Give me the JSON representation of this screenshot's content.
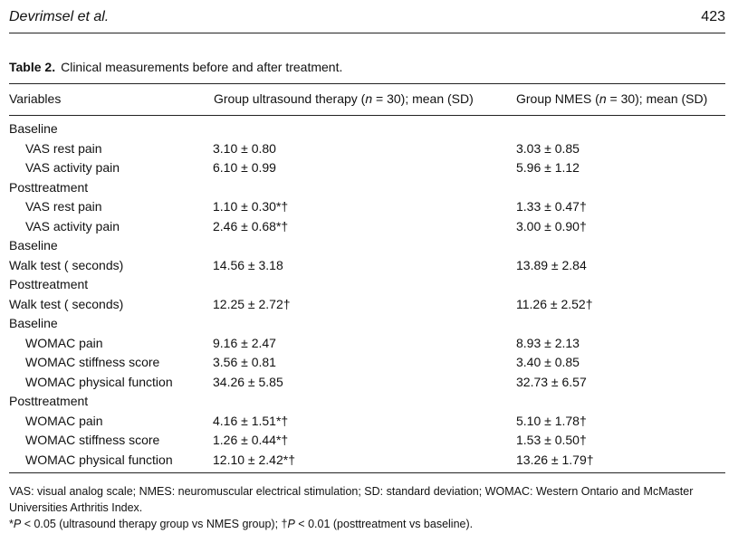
{
  "running_head": {
    "journal": "Devrimsel et al.",
    "page_number": "423"
  },
  "table": {
    "label": "Table 2.",
    "title": "Clinical measurements before and after treatment.",
    "columns": {
      "variables": "Variables",
      "group1_prefix": "Group ultrasound therapy (",
      "group1_n": "n",
      "group1_suffix": " = 30); mean (SD)",
      "group2_prefix": "Group NMES (",
      "group2_n": "n",
      "group2_suffix": " = 30); mean (SD)"
    },
    "rows": [
      {
        "label": "Baseline",
        "section": true
      },
      {
        "label": "VAS rest pain",
        "ultrasound": "3.10 ± 0.80",
        "nmes": "3.03 ± 0.85"
      },
      {
        "label": "VAS activity pain",
        "ultrasound": "6.10 ± 0.99",
        "nmes": "5.96 ± 1.12"
      },
      {
        "label": "Posttreatment",
        "section": true
      },
      {
        "label": "VAS rest pain",
        "ultrasound": "1.10 ± 0.30*†",
        "nmes": "1.33 ± 0.47†"
      },
      {
        "label": "VAS activity pain",
        "ultrasound": "2.46 ± 0.68*†",
        "nmes": "3.00 ± 0.90†"
      },
      {
        "label": "Baseline",
        "section": true
      },
      {
        "label": "Walk test ( seconds)",
        "noindent": true,
        "ultrasound": "14.56 ± 3.18",
        "nmes": "13.89 ± 2.84"
      },
      {
        "label": "Posttreatment",
        "section": true
      },
      {
        "label": "Walk test ( seconds)",
        "noindent": true,
        "ultrasound": "12.25 ± 2.72†",
        "nmes": "11.26 ± 2.52†"
      },
      {
        "label": "Baseline",
        "section": true
      },
      {
        "label": "WOMAC pain",
        "ultrasound": "9.16 ± 2.47",
        "nmes": "8.93 ± 2.13"
      },
      {
        "label": "WOMAC stiffness score",
        "ultrasound": "3.56 ± 0.81",
        "nmes": "3.40 ± 0.85"
      },
      {
        "label": "WOMAC physical function",
        "ultrasound": "34.26 ± 5.85",
        "nmes": "32.73 ± 6.57"
      },
      {
        "label": "Posttreatment",
        "section": true
      },
      {
        "label": "WOMAC pain",
        "ultrasound": "4.16 ± 1.51*†",
        "nmes": "5.10 ± 1.78†"
      },
      {
        "label": "WOMAC stiffness score",
        "ultrasound": "1.26 ± 0.44*†",
        "nmes": "1.53 ± 0.50†"
      },
      {
        "label": "WOMAC physical function",
        "ultrasound": "12.10 ± 2.42*†",
        "nmes": "13.26 ± 1.79†"
      }
    ],
    "footnotes": {
      "abbreviations": "VAS: visual analog scale; NMES: neuromuscular electrical stimulation; SD: standard deviation; WOMAC: Western Ontario and McMaster Universities Arthritis Index.",
      "sig_p1_symbol": "*",
      "sig_p1_var": "P",
      "sig_p1_text": " < 0.05 (ultrasound therapy group vs NMES group); ",
      "sig_p2_symbol": "†",
      "sig_p2_var": "P",
      "sig_p2_text": " < 0.01 (posttreatment vs baseline)."
    }
  }
}
